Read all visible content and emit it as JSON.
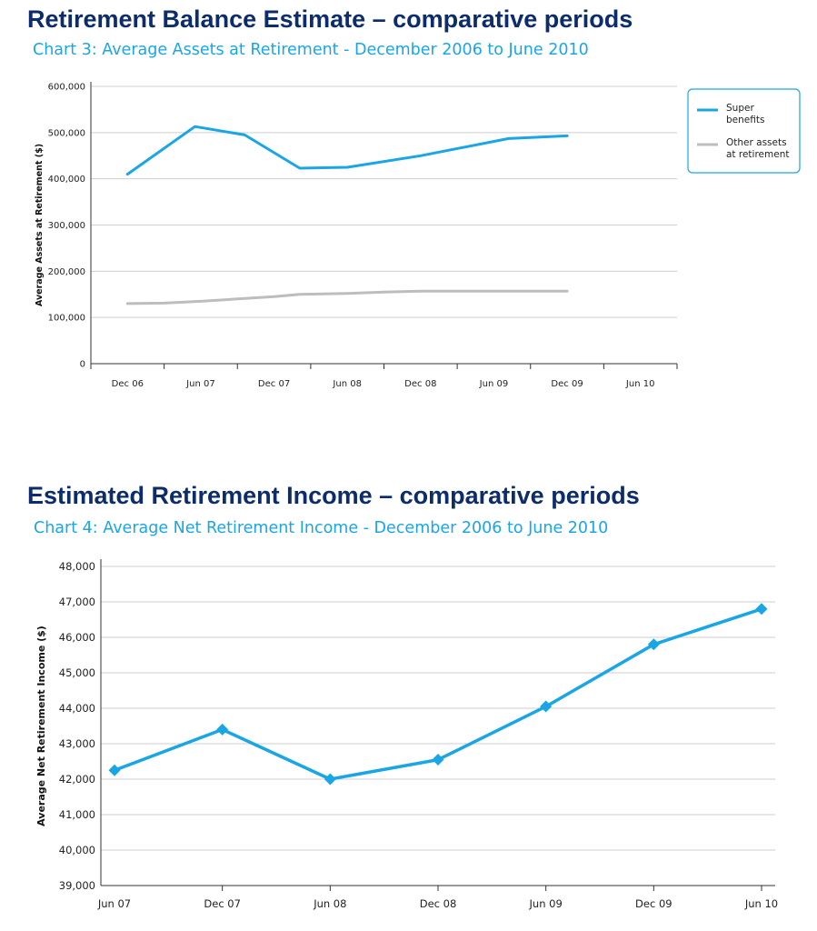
{
  "page": {
    "heading1": "Retirement Balance Estimate – comparative periods",
    "subheading1": "Chart 3: Average Assets at Retirement - December 2006 to June 2010",
    "heading2": "Estimated Retirement Income – comparative periods",
    "subheading2": "Chart 4: Average Net Retirement Income - December 2006 to June 2010"
  },
  "colors": {
    "heading": "#0c2c6b",
    "accent": "#1aa6e4",
    "grey_series": "#bdbdbd"
  },
  "chart_data": [
    {
      "type": "line",
      "title": "Chart 3: Average Assets at Retirement - December 2006 to June 2010",
      "ylabel": "Average Assets at Retirement ($)",
      "xlabel": "",
      "categories": [
        "Dec 06",
        "Jun 07",
        "Dec 07",
        "Jun 08",
        "Dec 08",
        "Jun 09",
        "Dec 09",
        "Jun 10"
      ],
      "ylim": [
        0,
        600000
      ],
      "yticks": [
        "0",
        "100,000",
        "200,000",
        "300,000",
        "400,000",
        "500,000",
        "600,000"
      ],
      "grid": true,
      "legend": "right",
      "series": [
        {
          "name": "Super benefits",
          "name_lines": [
            "Super",
            "benefits"
          ],
          "color": "#1aa6e4",
          "x": [
            0,
            0.92,
            1.6,
            2.35,
            3.0,
            4.0,
            5.2,
            6.0
          ],
          "values": [
            410000,
            513000,
            495000,
            423000,
            425000,
            450000,
            487000,
            493000
          ]
        },
        {
          "name": "Other assets at retirement",
          "name_lines": [
            "Other assets",
            "at retirement"
          ],
          "color": "#bdbdbd",
          "x": [
            0,
            0.5,
            1.0,
            1.5,
            2.0,
            2.35,
            3.0,
            3.5,
            4.0,
            5.0,
            6.0
          ],
          "values": [
            130000,
            131000,
            135000,
            140000,
            145000,
            150000,
            152000,
            155000,
            157000,
            157000,
            157000
          ]
        }
      ]
    },
    {
      "type": "line",
      "title": "Chart 4: Average Net Retirement Income - December 2006 to June 2010",
      "ylabel": "Average Net Retirement Income ($)",
      "xlabel": "",
      "categories": [
        "Jun 07",
        "Dec 07",
        "Jun 08",
        "Dec 08",
        "Jun 09",
        "Dec 09",
        "Jun 10"
      ],
      "ylim": [
        39000,
        48000
      ],
      "yticks": [
        "39,000",
        "40,000",
        "41,000",
        "42,000",
        "43,000",
        "44,000",
        "45,000",
        "46,000",
        "47,000",
        "48,000"
      ],
      "grid": true,
      "series": [
        {
          "color": "#1aa6e4",
          "marker": "diamond",
          "x": [
            0,
            1,
            2,
            3,
            4,
            5,
            6
          ],
          "values": [
            42250,
            43400,
            42000,
            42550,
            44050,
            45800,
            46800
          ]
        }
      ]
    }
  ]
}
